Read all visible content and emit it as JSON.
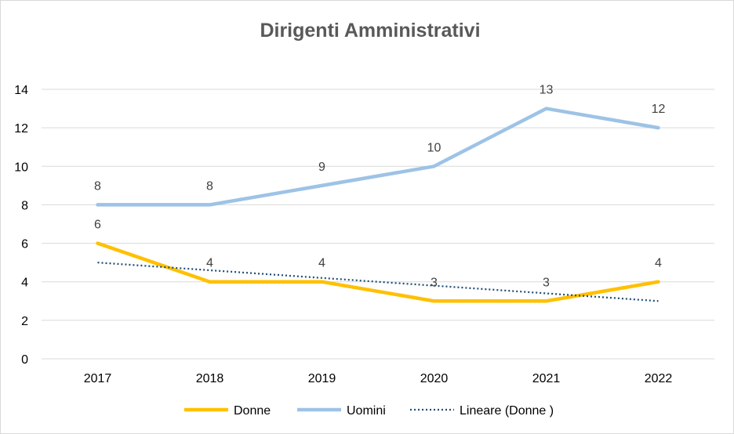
{
  "chart_data": {
    "type": "line",
    "title": "Dirigenti Amministrativi",
    "xlabel": "",
    "ylabel": "",
    "categories": [
      "2017",
      "2018",
      "2019",
      "2020",
      "2021",
      "2022"
    ],
    "ylim": [
      0,
      14
    ],
    "yticks": [
      0,
      2,
      4,
      6,
      8,
      10,
      12,
      14
    ],
    "grid": true,
    "legend_position": "bottom",
    "series": [
      {
        "key": "donne",
        "name": "Donne",
        "values": [
          6,
          4,
          4,
          3,
          3,
          4
        ],
        "color": "#ffc000",
        "style": "solid",
        "labels": [
          "6",
          "4",
          "4",
          "3",
          "3",
          "4"
        ]
      },
      {
        "key": "uomini",
        "name": "Uomini",
        "values": [
          8,
          8,
          9,
          10,
          13,
          12
        ],
        "color": "#9dc3e6",
        "style": "solid",
        "labels": [
          "8",
          "8",
          "9",
          "10",
          "13",
          "12"
        ]
      },
      {
        "key": "trend",
        "name": "Lineare (Donne )",
        "values": [
          5.0,
          4.6,
          4.2,
          3.8,
          3.4,
          3.0
        ],
        "color": "#1f4e79",
        "style": "dotted",
        "labels": []
      }
    ]
  }
}
